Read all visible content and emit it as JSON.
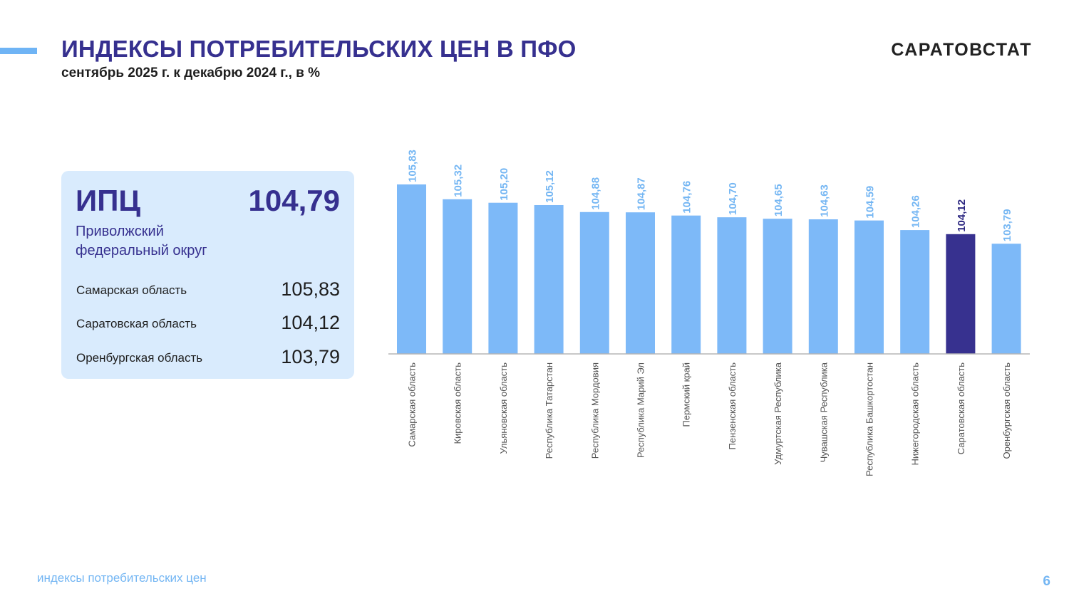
{
  "header": {
    "title": "ИНДЕКСЫ ПОТРЕБИТЕЛЬСКИХ ЦЕН В ПФО",
    "subtitle": "сентябрь 2025 г. к декабрю 2024 г., в %",
    "brand": "САРАТОВСТАТ"
  },
  "summary_panel": {
    "cpi_label": "ИПЦ",
    "cpi_value": "104,79",
    "district_line1": "Приволжский",
    "district_line2": "федеральный округ",
    "rows": [
      {
        "name": "Самарская область",
        "value": "105,83"
      },
      {
        "name": "Саратовская область",
        "value": "104,12"
      },
      {
        "name": "Оренбургская область",
        "value": "103,79"
      }
    ]
  },
  "chart_data": {
    "type": "bar",
    "categories": [
      "Самарская область",
      "Кировская область",
      "Ульяновская область",
      "Республика Татарстан",
      "Республика Мордовия",
      "Республика Марий Эл",
      "Пермский край",
      "Пензенская область",
      "Удмуртская Республика",
      "Чувашская Республика",
      "Республика Башкортостан",
      "Нижегородская область",
      "Саратовская область",
      "Оренбургская область"
    ],
    "values": [
      105.83,
      105.32,
      105.2,
      105.12,
      104.88,
      104.87,
      104.76,
      104.7,
      104.65,
      104.63,
      104.59,
      104.26,
      104.12,
      103.79
    ],
    "value_labels": [
      "105,83",
      "105,32",
      "105,20",
      "105,12",
      "104,88",
      "104,87",
      "104,76",
      "104,70",
      "104,65",
      "104,63",
      "104,59",
      "104,26",
      "104,12",
      "103,79"
    ],
    "highlight_category": "Саратовская область",
    "ylim": [
      100,
      105.83
    ],
    "grid": false,
    "legend": "none",
    "colors": {
      "bar": "#7db9f8",
      "highlight": "#37318f",
      "label": "#74b6f3",
      "highlight_label": "#2b2680",
      "axis": "#b5b5b5",
      "category_text": "#555555"
    }
  },
  "footer": {
    "section_label": "индексы потребительских цен",
    "page_number": "6"
  }
}
